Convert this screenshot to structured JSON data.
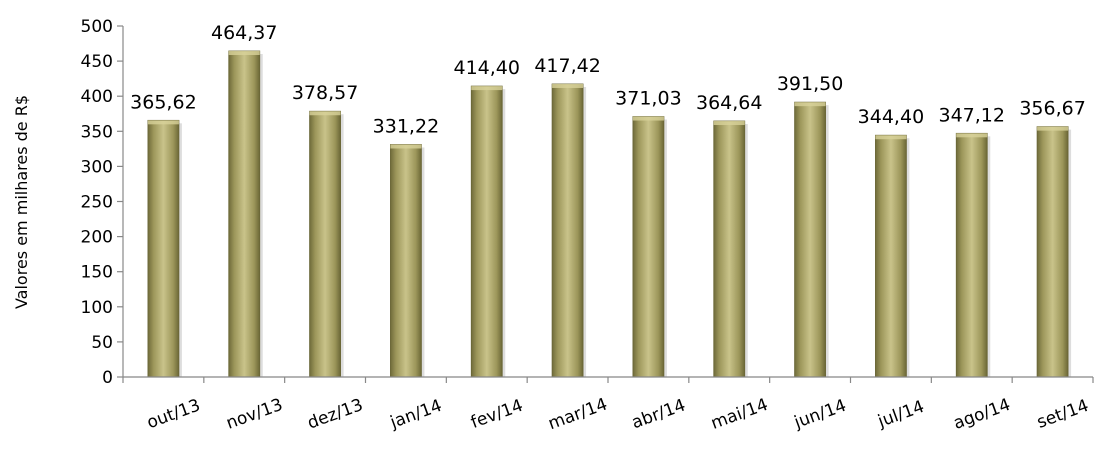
{
  "chart_data": {
    "type": "bar",
    "title": "",
    "xlabel": "",
    "ylabel": "Valores em milhares de R$",
    "ylim": [
      0,
      500
    ],
    "yticks": [
      "0",
      "50",
      "100",
      "150",
      "200",
      "250",
      "300",
      "350",
      "400",
      "450",
      "500"
    ],
    "categories": [
      "out/13",
      "nov/13",
      "dez/13",
      "jan/14",
      "fev/14",
      "mar/14",
      "abr/14",
      "mai/14",
      "jun/14",
      "jul/14",
      "ago/14",
      "set/14"
    ],
    "values": [
      365.62,
      464.37,
      378.57,
      331.22,
      414.4,
      417.42,
      371.03,
      364.64,
      391.5,
      344.4,
      347.12,
      356.67
    ],
    "value_labels": [
      "365,62",
      "464,37",
      "378,57",
      "331,22",
      "414,40",
      "417,42",
      "371,03",
      "364,64",
      "391,50",
      "344,40",
      "347,12",
      "356,67"
    ],
    "grid": false,
    "legend": "none",
    "bar_color": "#a09a5c"
  }
}
